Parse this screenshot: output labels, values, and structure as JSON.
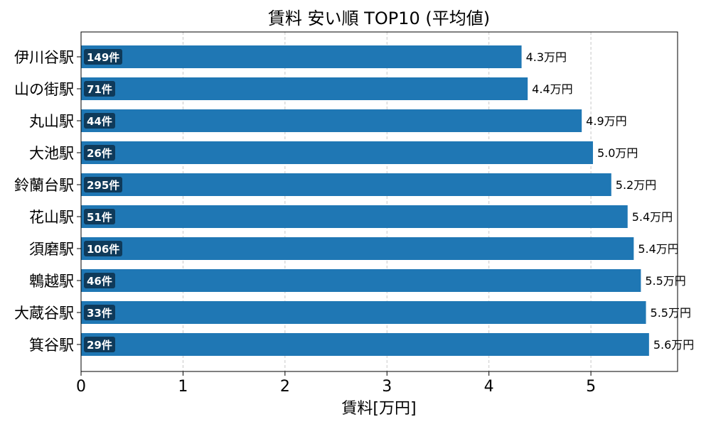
{
  "chart_data": {
    "type": "bar",
    "orientation": "horizontal",
    "title": "賃料 安い順 TOP10 (平均値)",
    "xlabel": "賃料[万円]",
    "ylabel": "",
    "xlim": [
      0,
      5.85
    ],
    "xticks": [
      0,
      1,
      2,
      3,
      4,
      5
    ],
    "grid": "x-dashed",
    "categories": [
      "伊川谷駅",
      "山の街駅",
      "丸山駅",
      "大池駅",
      "鈴蘭台駅",
      "花山駅",
      "須磨駅",
      "鵯越駅",
      "大蔵谷駅",
      "箕谷駅"
    ],
    "values": [
      4.32,
      4.38,
      4.91,
      5.02,
      5.2,
      5.36,
      5.42,
      5.49,
      5.54,
      5.57
    ],
    "value_labels": [
      "4.3万円",
      "4.4万円",
      "4.9万円",
      "5.0万円",
      "5.2万円",
      "5.4万円",
      "5.4万円",
      "5.5万円",
      "5.5万円",
      "5.6万円"
    ],
    "count_labels": [
      "149件",
      "71件",
      "44件",
      "26件",
      "295件",
      "51件",
      "106件",
      "46件",
      "33件",
      "29件"
    ],
    "colors": {
      "bar": "#1f77b4",
      "count_badge": "#0f3a5a",
      "grid": "#c8c8c8",
      "axis": "#000000"
    }
  }
}
